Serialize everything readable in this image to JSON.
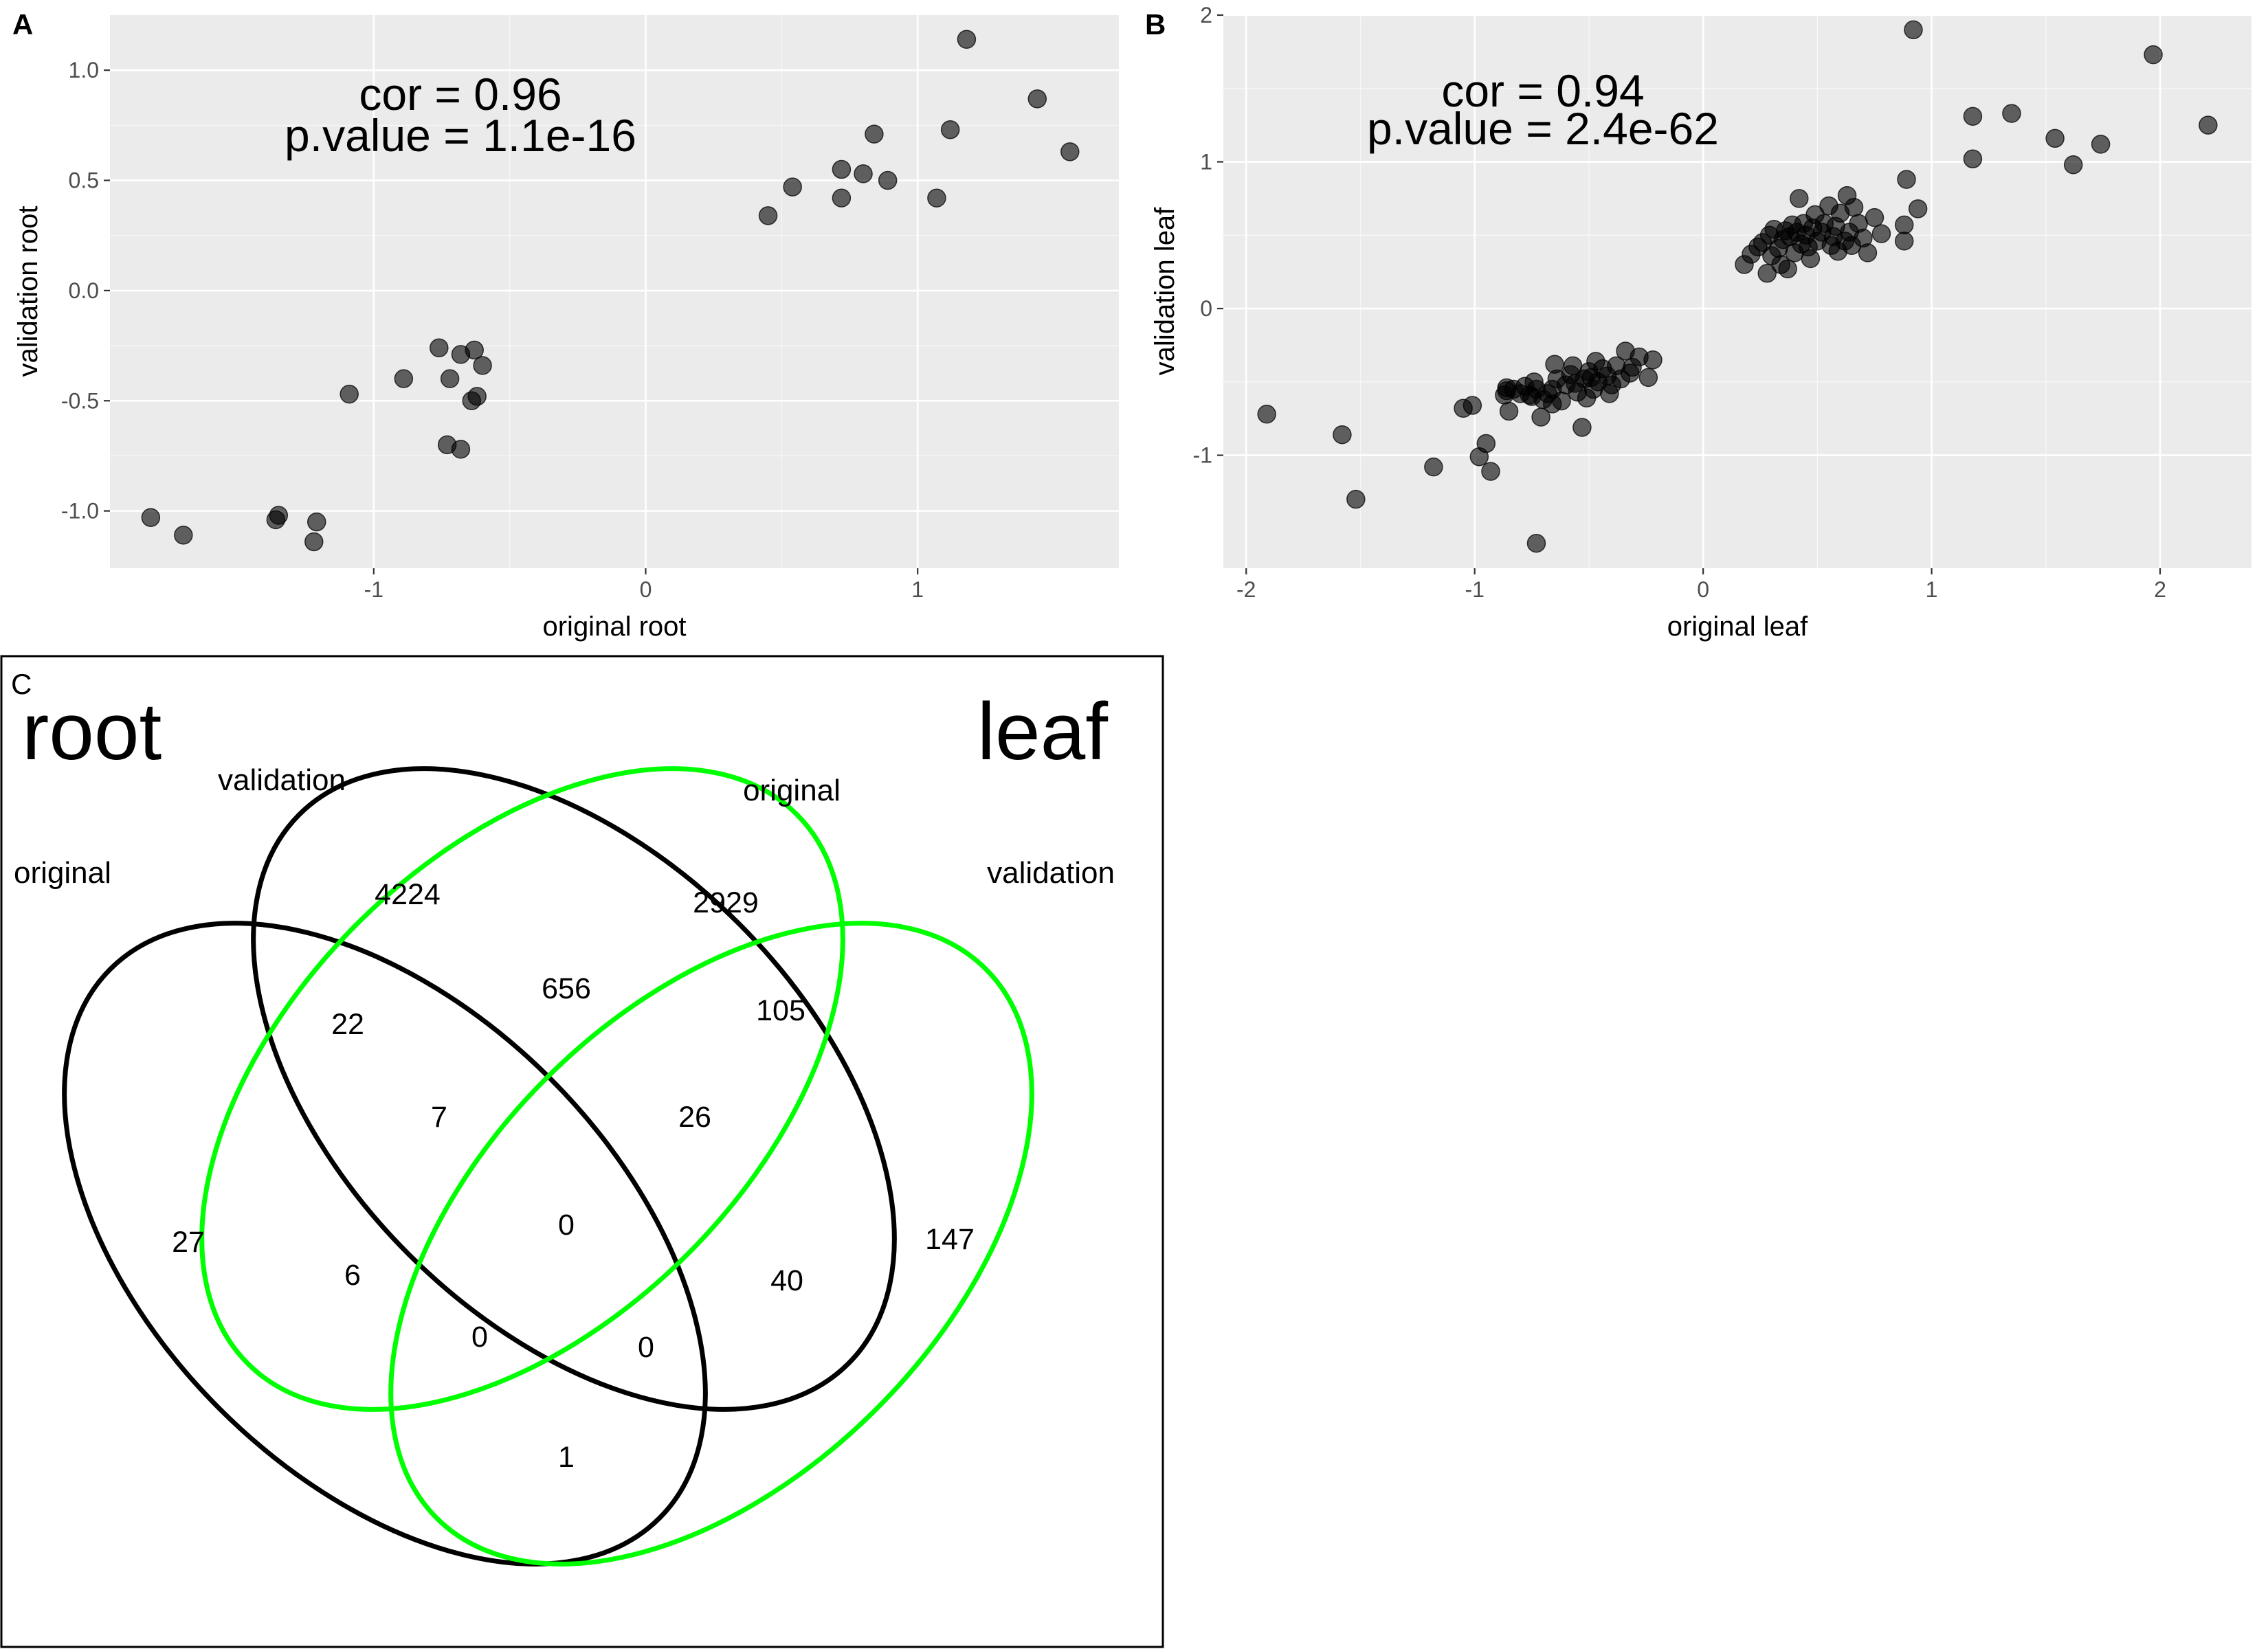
{
  "chart_data": [
    {
      "panel": "A",
      "type": "scatter",
      "xlabel": "original root",
      "ylabel": "validation root",
      "xlim": [
        -1.97,
        1.74
      ],
      "ylim": [
        -1.26,
        1.25
      ],
      "xticks": [
        {
          "v": -1,
          "label": "-1"
        },
        {
          "v": 0,
          "label": "0"
        },
        {
          "v": 1,
          "label": "1"
        }
      ],
      "yticks": [
        {
          "v": -1.0,
          "label": "-1.0"
        },
        {
          "v": -0.5,
          "label": "-0.5"
        },
        {
          "v": 0.0,
          "label": "0.0"
        },
        {
          "v": 0.5,
          "label": "0.5"
        },
        {
          "v": 1.0,
          "label": "1.0"
        }
      ],
      "annotation": {
        "cor": "cor = 0.96",
        "pvalue": "p.value = 1.1e-16"
      },
      "points": [
        [
          -1.82,
          -1.03
        ],
        [
          -1.7,
          -1.11
        ],
        [
          -1.36,
          -1.04
        ],
        [
          -1.35,
          -1.02
        ],
        [
          -1.22,
          -1.14
        ],
        [
          -1.21,
          -1.05
        ],
        [
          -1.09,
          -0.47
        ],
        [
          -0.89,
          -0.4
        ],
        [
          -0.76,
          -0.26
        ],
        [
          -0.72,
          -0.4
        ],
        [
          -0.68,
          -0.29
        ],
        [
          -0.64,
          -0.5
        ],
        [
          -0.63,
          -0.27
        ],
        [
          -0.62,
          -0.48
        ],
        [
          -0.6,
          -0.34
        ],
        [
          -0.73,
          -0.7
        ],
        [
          -0.68,
          -0.72
        ],
        [
          0.45,
          0.34
        ],
        [
          0.54,
          0.47
        ],
        [
          0.72,
          0.55
        ],
        [
          0.72,
          0.42
        ],
        [
          0.8,
          0.53
        ],
        [
          0.84,
          0.71
        ],
        [
          0.89,
          0.5
        ],
        [
          1.07,
          0.42
        ],
        [
          1.12,
          0.73
        ],
        [
          1.18,
          1.14
        ],
        [
          1.44,
          0.87
        ],
        [
          1.56,
          0.63
        ]
      ]
    },
    {
      "panel": "B",
      "type": "scatter",
      "xlabel": "original leaf",
      "ylabel": "validation leaf",
      "xlim": [
        -2.1,
        2.4
      ],
      "ylim": [
        -1.77,
        2.0
      ],
      "xticks": [
        {
          "v": -2,
          "label": "-2"
        },
        {
          "v": -1,
          "label": "-1"
        },
        {
          "v": 0,
          "label": "0"
        },
        {
          "v": 1,
          "label": "1"
        },
        {
          "v": 2,
          "label": "2"
        }
      ],
      "yticks": [
        {
          "v": -1,
          "label": "-1"
        },
        {
          "v": 0,
          "label": "0"
        },
        {
          "v": 1,
          "label": "1"
        },
        {
          "v": 2,
          "label": "2"
        }
      ],
      "annotation": {
        "cor": "cor = 0.94",
        "pvalue": "p.value = 2.4e-62"
      },
      "points": [
        [
          -1.91,
          -0.72
        ],
        [
          -1.58,
          -0.86
        ],
        [
          -1.52,
          -1.3
        ],
        [
          -1.18,
          -1.08
        ],
        [
          -0.98,
          -1.01
        ],
        [
          -0.95,
          -0.92
        ],
        [
          -0.93,
          -1.11
        ],
        [
          -0.73,
          -1.6
        ],
        [
          -1.05,
          -0.68
        ],
        [
          -1.01,
          -0.66
        ],
        [
          -0.87,
          -0.59
        ],
        [
          -0.86,
          -0.54
        ],
        [
          -0.85,
          -0.7
        ],
        [
          -0.83,
          -0.55
        ],
        [
          -0.8,
          -0.58
        ],
        [
          -0.78,
          -0.53
        ],
        [
          -0.76,
          -0.59
        ],
        [
          -0.75,
          -0.6
        ],
        [
          -0.73,
          -0.55
        ],
        [
          -0.71,
          -0.74
        ],
        [
          -0.7,
          -0.62
        ],
        [
          -0.68,
          -0.58
        ],
        [
          -0.66,
          -0.65
        ],
        [
          -0.65,
          -0.38
        ],
        [
          -0.64,
          -0.48
        ],
        [
          -0.62,
          -0.63
        ],
        [
          -0.6,
          -0.52
        ],
        [
          -0.58,
          -0.45
        ],
        [
          -0.57,
          -0.39
        ],
        [
          -0.55,
          -0.57
        ],
        [
          -0.53,
          -0.81
        ],
        [
          -0.52,
          -0.48
        ],
        [
          -0.51,
          -0.61
        ],
        [
          -0.5,
          -0.43
        ],
        [
          -0.48,
          -0.55
        ],
        [
          -0.47,
          -0.36
        ],
        [
          -0.46,
          -0.5
        ],
        [
          -0.44,
          -0.41
        ],
        [
          -0.42,
          -0.46
        ],
        [
          -0.41,
          -0.58
        ],
        [
          -0.4,
          -0.52
        ],
        [
          -0.38,
          -0.39
        ],
        [
          -0.36,
          -0.48
        ],
        [
          -0.34,
          -0.29
        ],
        [
          -0.32,
          -0.44
        ],
        [
          -0.31,
          -0.4
        ],
        [
          -0.28,
          -0.33
        ],
        [
          -0.24,
          -0.47
        ],
        [
          -0.22,
          -0.35
        ],
        [
          -0.86,
          -0.56
        ],
        [
          -0.74,
          -0.5
        ],
        [
          -0.66,
          -0.55
        ],
        [
          -0.56,
          -0.51
        ],
        [
          -0.49,
          -0.47
        ],
        [
          0.18,
          0.3
        ],
        [
          0.21,
          0.37
        ],
        [
          0.24,
          0.42
        ],
        [
          0.26,
          0.45
        ],
        [
          0.28,
          0.24
        ],
        [
          0.29,
          0.5
        ],
        [
          0.3,
          0.36
        ],
        [
          0.31,
          0.54
        ],
        [
          0.33,
          0.41
        ],
        [
          0.34,
          0.3
        ],
        [
          0.35,
          0.47
        ],
        [
          0.36,
          0.53
        ],
        [
          0.37,
          0.27
        ],
        [
          0.38,
          0.49
        ],
        [
          0.39,
          0.57
        ],
        [
          0.4,
          0.38
        ],
        [
          0.41,
          0.52
        ],
        [
          0.42,
          0.75
        ],
        [
          0.43,
          0.44
        ],
        [
          0.44,
          0.58
        ],
        [
          0.45,
          0.5
        ],
        [
          0.46,
          0.42
        ],
        [
          0.47,
          0.34
        ],
        [
          0.48,
          0.55
        ],
        [
          0.49,
          0.64
        ],
        [
          0.5,
          0.46
        ],
        [
          0.52,
          0.52
        ],
        [
          0.53,
          0.58
        ],
        [
          0.55,
          0.7
        ],
        [
          0.56,
          0.43
        ],
        [
          0.57,
          0.49
        ],
        [
          0.58,
          0.56
        ],
        [
          0.59,
          0.39
        ],
        [
          0.6,
          0.65
        ],
        [
          0.62,
          0.46
        ],
        [
          0.63,
          0.77
        ],
        [
          0.64,
          0.52
        ],
        [
          0.65,
          0.43
        ],
        [
          0.66,
          0.69
        ],
        [
          0.68,
          0.58
        ],
        [
          0.7,
          0.48
        ],
        [
          0.72,
          0.38
        ],
        [
          0.75,
          0.62
        ],
        [
          0.78,
          0.51
        ],
        [
          0.88,
          0.46
        ],
        [
          0.88,
          0.57
        ],
        [
          0.89,
          0.88
        ],
        [
          0.94,
          0.68
        ],
        [
          0.92,
          1.9
        ],
        [
          1.18,
          1.31
        ],
        [
          1.18,
          1.02
        ],
        [
          1.35,
          1.33
        ],
        [
          1.54,
          1.16
        ],
        [
          1.62,
          0.98
        ],
        [
          1.74,
          1.12
        ],
        [
          1.97,
          1.73
        ],
        [
          2.21,
          1.25
        ]
      ]
    },
    {
      "panel": "C",
      "type": "venn",
      "group_labels": {
        "left": "root",
        "right": "leaf"
      },
      "sets": [
        {
          "name": "original",
          "group": "root",
          "color": "#000000"
        },
        {
          "name": "validation",
          "group": "root",
          "color": "#000000"
        },
        {
          "name": "original",
          "group": "leaf",
          "color": "#00ff00"
        },
        {
          "name": "validation",
          "group": "leaf",
          "color": "#00ff00"
        }
      ],
      "counts": [
        {
          "sets": [
            "root original"
          ],
          "value": "27"
        },
        {
          "sets": [
            "root validation"
          ],
          "value": "4224"
        },
        {
          "sets": [
            "leaf original"
          ],
          "value": "2929"
        },
        {
          "sets": [
            "leaf validation"
          ],
          "value": "147"
        },
        {
          "sets": [
            "root original",
            "root validation"
          ],
          "value": "22"
        },
        {
          "sets": [
            "root validation",
            "leaf original"
          ],
          "value": "656"
        },
        {
          "sets": [
            "leaf original",
            "leaf validation"
          ],
          "value": "105"
        },
        {
          "sets": [
            "root original",
            "root validation",
            "leaf original"
          ],
          "value": "7"
        },
        {
          "sets": [
            "root validation",
            "leaf original",
            "leaf validation"
          ],
          "value": "26"
        },
        {
          "sets": [
            "root original",
            "leaf original"
          ],
          "value": "6"
        },
        {
          "sets": [
            "root original",
            "root validation",
            "leaf original",
            "leaf validation"
          ],
          "value": "0"
        },
        {
          "sets": [
            "root validation",
            "leaf validation"
          ],
          "value": "40"
        },
        {
          "sets": [
            "root original",
            "leaf original",
            "leaf validation"
          ],
          "value": "0"
        },
        {
          "sets": [
            "root original",
            "root validation",
            "leaf validation"
          ],
          "value": "0"
        },
        {
          "sets": [
            "root original",
            "leaf validation"
          ],
          "value": "1"
        }
      ]
    }
  ]
}
